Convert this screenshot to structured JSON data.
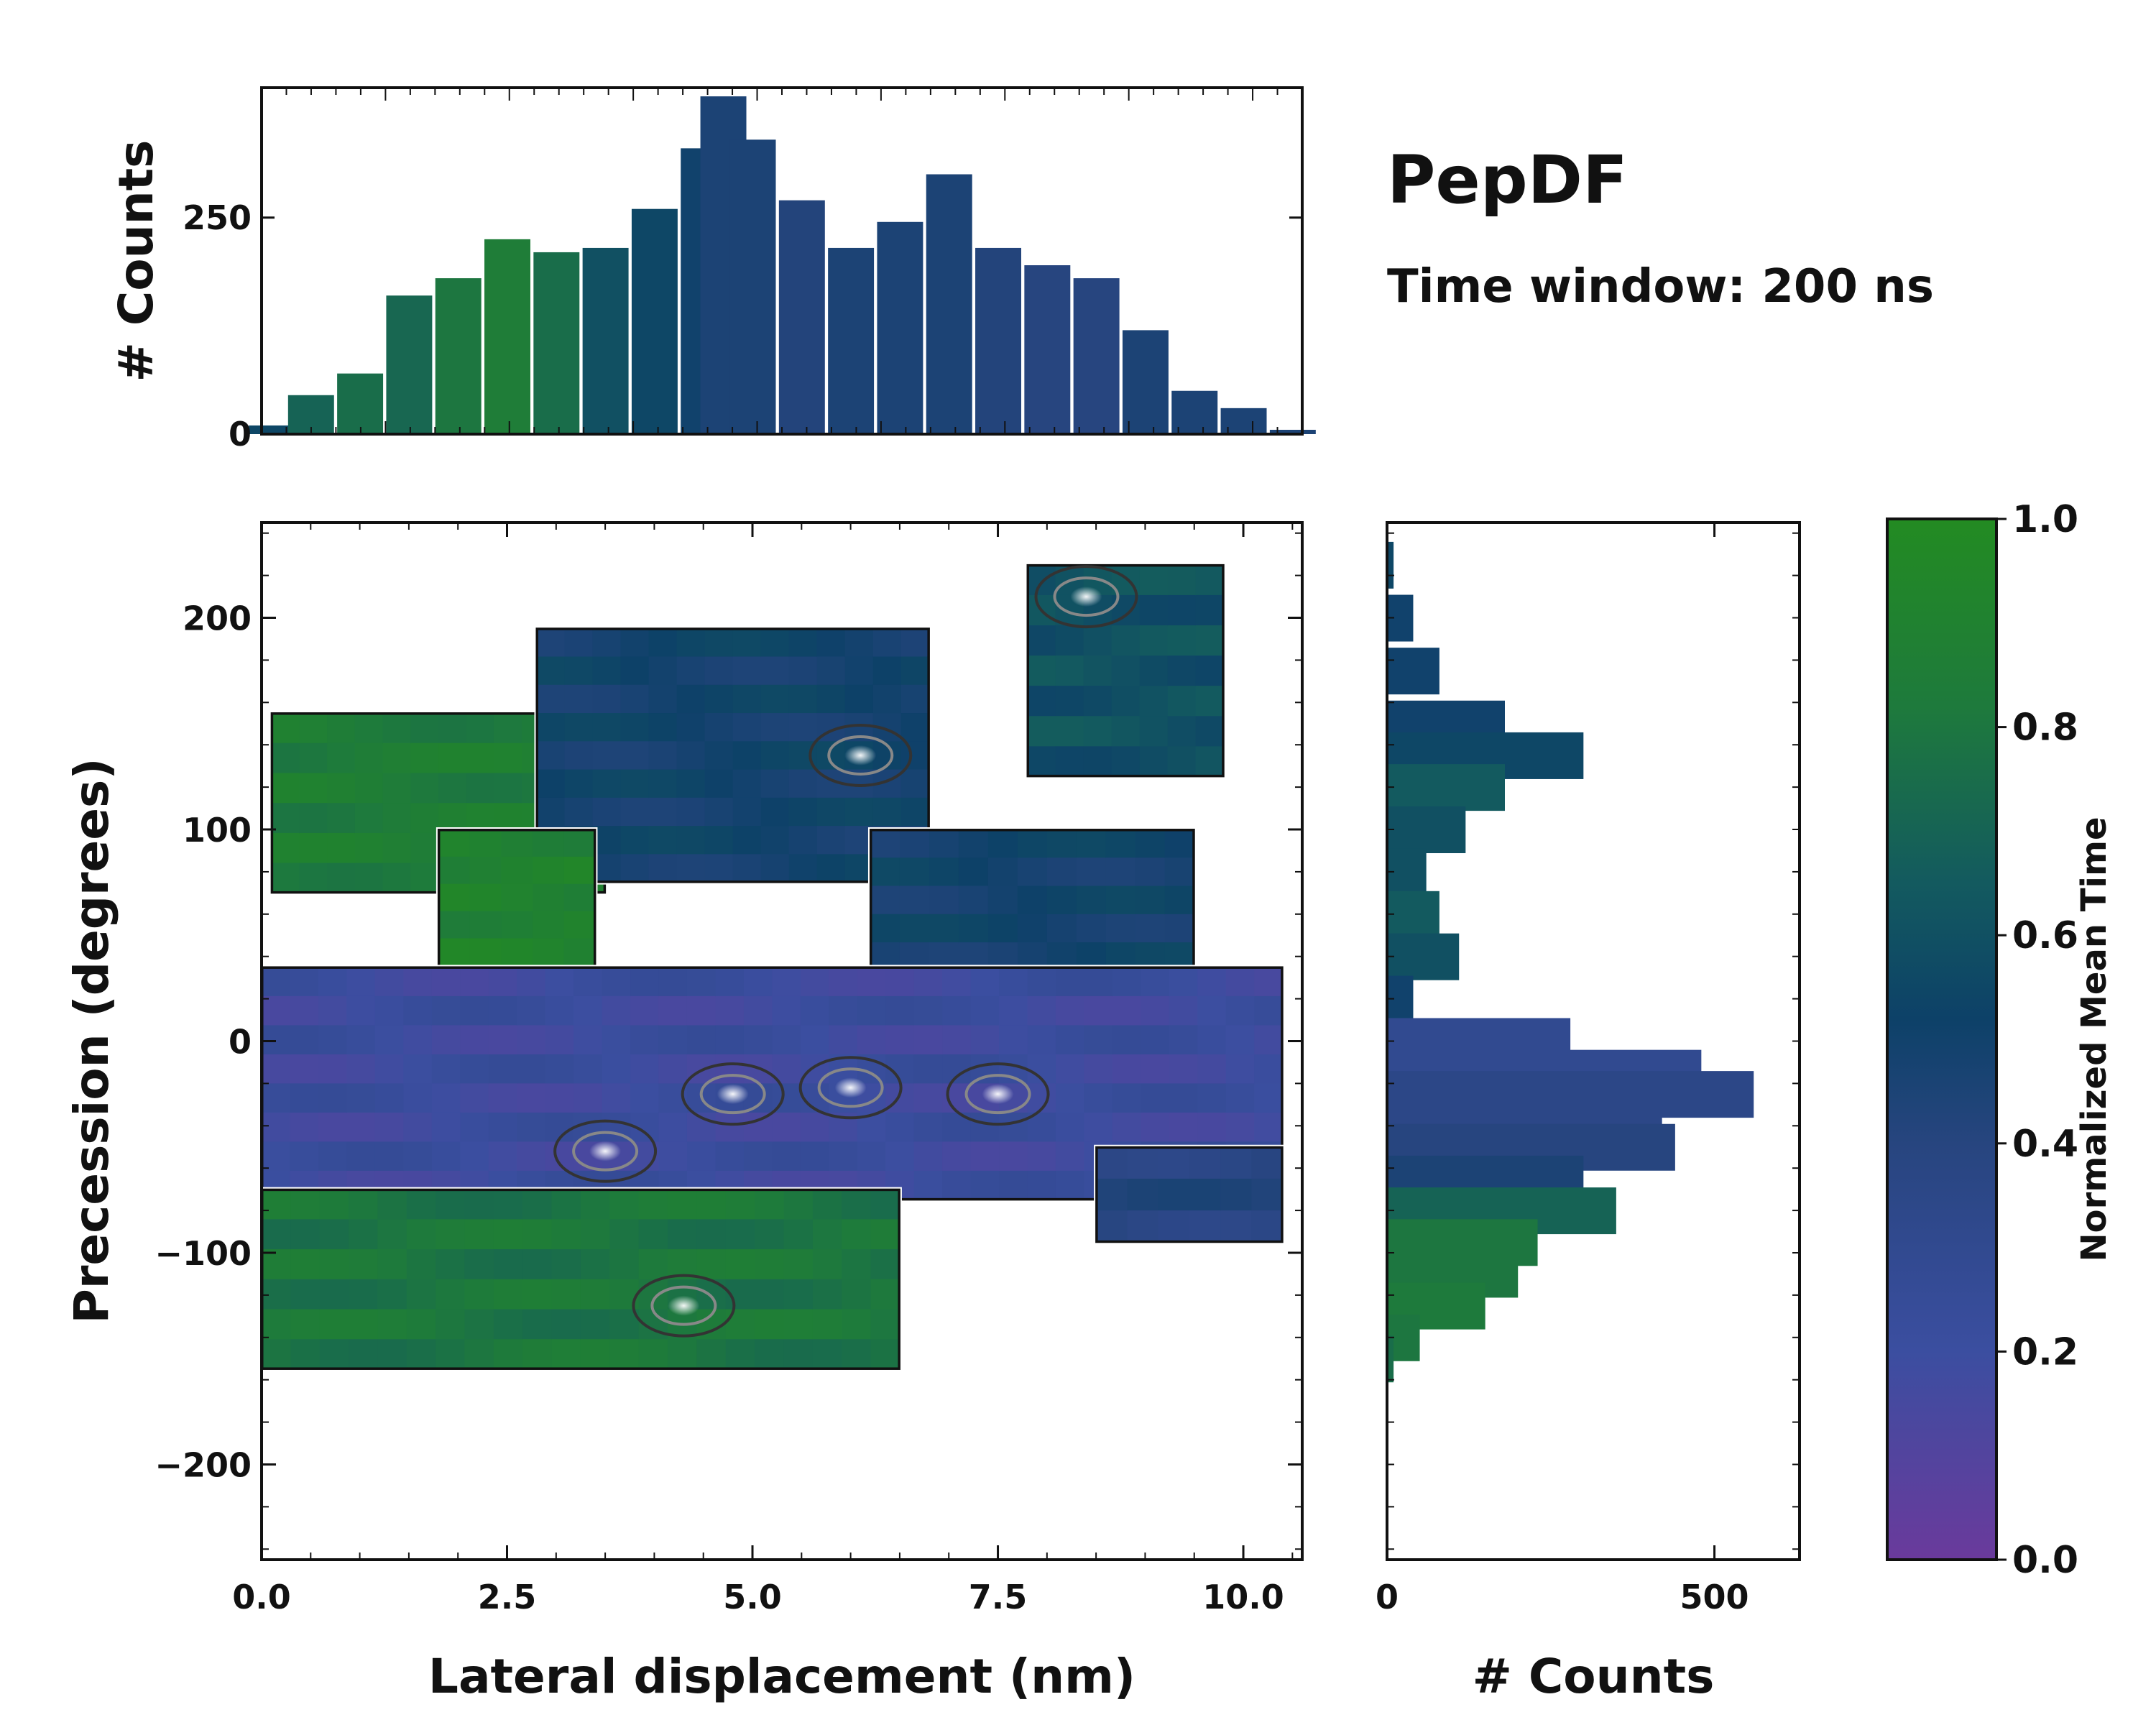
{
  "chart_data": [
    {
      "panel": "top-marginal-histogram",
      "type": "bar",
      "title": "PepDF",
      "subtitle": "Time window: 200 ns",
      "ylabel": "# Counts",
      "xlim": [
        0.0,
        10.6
      ],
      "ylim": [
        0,
        400
      ],
      "yticks": [
        0,
        250
      ],
      "x_values": [
        0.1,
        0.5,
        1.0,
        1.5,
        2.0,
        2.5,
        3.0,
        3.5,
        4.0,
        4.5,
        4.7,
        5.0,
        5.5,
        6.0,
        6.5,
        7.0,
        7.5,
        8.0,
        8.5,
        9.0,
        9.5,
        10.0,
        10.5
      ],
      "counts": [
        10,
        45,
        70,
        160,
        180,
        225,
        210,
        215,
        260,
        330,
        390,
        340,
        270,
        215,
        245,
        300,
        215,
        195,
        180,
        120,
        50,
        30,
        5
      ],
      "color_values": [
        0.55,
        0.7,
        0.75,
        0.72,
        0.8,
        0.85,
        0.75,
        0.6,
        0.55,
        0.5,
        0.45,
        0.45,
        0.42,
        0.45,
        0.45,
        0.45,
        0.42,
        0.4,
        0.4,
        0.45,
        0.45,
        0.45,
        0.45
      ]
    },
    {
      "panel": "joint-2d-histogram",
      "type": "heatmap",
      "xlabel": "Lateral displacement (nm)",
      "ylabel": "Precession (degrees)",
      "xlim": [
        0.0,
        10.6
      ],
      "ylim": [
        -245,
        245
      ],
      "xticks": [
        "0.0",
        "2.5",
        "5.0",
        "7.5",
        "10.0"
      ],
      "yticks": [
        "200",
        "100",
        "0",
        "−100",
        "−200"
      ],
      "regions": [
        {
          "name": "upper-left-lobe",
          "x_range": [
            0.1,
            3.5
          ],
          "y_range": [
            70,
            155
          ],
          "mean_time": 0.85
        },
        {
          "name": "upper-middle-lobe",
          "x_range": [
            2.8,
            6.8
          ],
          "y_range": [
            75,
            195
          ],
          "mean_time": 0.5
        },
        {
          "name": "upper-right-lobe",
          "x_range": [
            7.8,
            9.8
          ],
          "y_range": [
            125,
            225
          ],
          "mean_time": 0.6
        },
        {
          "name": "center-left-arm",
          "x_range": [
            1.8,
            3.4
          ],
          "y_range": [
            10,
            100
          ],
          "mean_time": 0.9
        },
        {
          "name": "center-right-block",
          "x_range": [
            6.2,
            9.5
          ],
          "y_range": [
            20,
            100
          ],
          "mean_time": 0.5
        },
        {
          "name": "lower-violet-band",
          "x_range": [
            0.0,
            10.4
          ],
          "y_range": [
            -75,
            35
          ],
          "mean_time": 0.2
        },
        {
          "name": "lower-green-band",
          "x_range": [
            0.0,
            6.5
          ],
          "y_range": [
            -155,
            -70
          ],
          "mean_time": 0.8
        },
        {
          "name": "lower-right-block",
          "x_range": [
            8.5,
            10.4
          ],
          "y_range": [
            -95,
            -50
          ],
          "mean_time": 0.4
        }
      ],
      "density_peaks": [
        {
          "x": 3.5,
          "y": -52
        },
        {
          "x": 4.8,
          "y": -25
        },
        {
          "x": 6.0,
          "y": -22
        },
        {
          "x": 7.5,
          "y": -25
        },
        {
          "x": 4.3,
          "y": -125
        },
        {
          "x": 6.1,
          "y": 135
        },
        {
          "x": 8.4,
          "y": 210
        }
      ]
    },
    {
      "panel": "right-marginal-histogram",
      "type": "bar",
      "orientation": "horizontal",
      "xlabel": "# Counts",
      "xlim": [
        0,
        630
      ],
      "xticks": [
        0,
        500
      ],
      "y_values": [
        225,
        200,
        175,
        150,
        135,
        120,
        100,
        80,
        60,
        40,
        20,
        0,
        -15,
        -25,
        -35,
        -50,
        -65,
        -80,
        -95,
        -110,
        -125,
        -140,
        -150
      ],
      "counts": [
        10,
        40,
        80,
        180,
        300,
        180,
        120,
        60,
        80,
        110,
        40,
        280,
        480,
        560,
        420,
        440,
        300,
        350,
        230,
        200,
        150,
        50,
        10
      ],
      "color_values": [
        0.55,
        0.5,
        0.5,
        0.5,
        0.55,
        0.65,
        0.6,
        0.6,
        0.65,
        0.6,
        0.5,
        0.3,
        0.3,
        0.35,
        0.35,
        0.4,
        0.45,
        0.7,
        0.8,
        0.8,
        0.82,
        0.8,
        0.75
      ]
    },
    {
      "panel": "colorbar",
      "type": "colorbar",
      "label": "Normalized Mean Time",
      "range": [
        0.0,
        1.0
      ],
      "ticks": [
        "0.0",
        "0.2",
        "0.4",
        "0.6",
        "0.8",
        "1.0"
      ],
      "colormap": [
        "#6a3a9c",
        "#3b4ea0",
        "#27457f",
        "#0d4a6b",
        "#1e6a50",
        "#2a8a2c",
        "#238b22"
      ]
    }
  ],
  "text": {
    "title": "PepDF",
    "subtitle": "Time window: 200 ns",
    "top_ylabel": "# Counts",
    "main_xlabel": "Lateral displacement (nm)",
    "main_ylabel": "Precession (degrees)",
    "right_xlabel": "# Counts",
    "cbar_label": "Normalized Mean Time"
  }
}
